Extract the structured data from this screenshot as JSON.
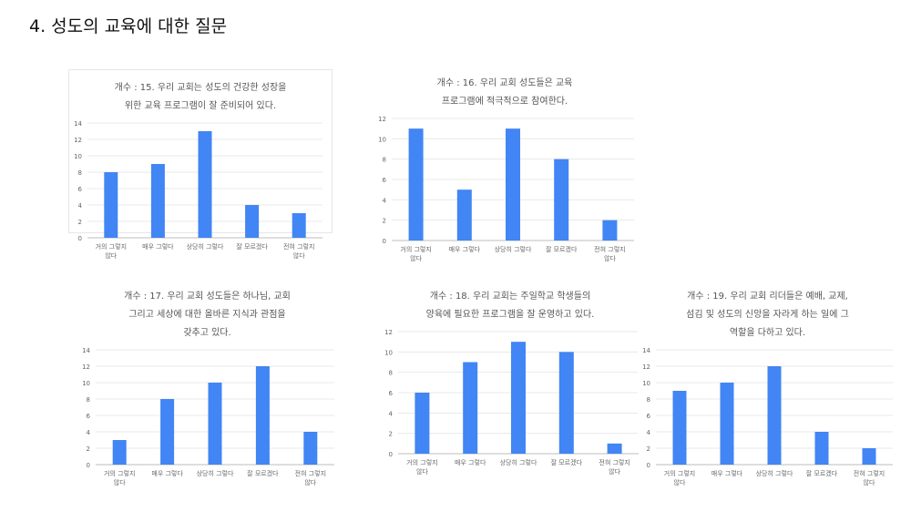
{
  "page": {
    "title": "4. 성도의 교육에 대한 질문"
  },
  "colors": {
    "bar": "#4285F4",
    "grid": "#e8e8e8",
    "text": "#666666"
  },
  "chart_data": [
    {
      "type": "bar",
      "title_lines": [
        "개수 : 15. 우리 교회는 성도의 건강한 성장을",
        "위한 교육 프로그램이 잘 준비되어 있다."
      ],
      "categories": [
        [
          "거의 그렇지",
          "않다"
        ],
        [
          "매우 그렇다"
        ],
        [
          "상당히 그렇다"
        ],
        [
          "잘 모르겠다"
        ],
        [
          "전혀 그렇지",
          "않다"
        ]
      ],
      "values": [
        8,
        9,
        13,
        4,
        3
      ],
      "ylim": [
        0,
        14
      ],
      "yticks": [
        "0",
        "2",
        "4",
        "6",
        "8",
        "10",
        "12",
        "14"
      ],
      "grid": true
    },
    {
      "type": "bar",
      "title_lines": [
        "개수 : 16. 우리 교회 성도들은 교육",
        "프로그램에 적극적으로 참여한다."
      ],
      "categories": [
        [
          "거의 그렇지",
          "않다"
        ],
        [
          "매우 그렇다"
        ],
        [
          "상당히 그렇다"
        ],
        [
          "잘 모르겠다"
        ],
        [
          "전혀 그렇지",
          "않다"
        ]
      ],
      "values": [
        11,
        5,
        11,
        8,
        2
      ],
      "ylim": [
        0,
        12
      ],
      "yticks": [
        "0",
        "2",
        "4",
        "6",
        "8",
        "10",
        "12"
      ],
      "grid": true
    },
    {
      "type": "bar",
      "title_lines": [
        "개수 : 17. 우리 교회 성도들은 하나님, 교회",
        "그리고 세상에 대한 올바른 지식과 관점을",
        "갖추고 있다."
      ],
      "categories": [
        [
          "거의 그렇지",
          "않다"
        ],
        [
          "매우 그렇다"
        ],
        [
          "상당히 그렇다"
        ],
        [
          "잘 모르겠다"
        ],
        [
          "전혀 그렇지",
          "않다"
        ]
      ],
      "values": [
        3,
        8,
        10,
        12,
        4
      ],
      "ylim": [
        0,
        14
      ],
      "yticks": [
        "0",
        "2",
        "4",
        "6",
        "8",
        "10",
        "12",
        "14"
      ],
      "grid": true
    },
    {
      "type": "bar",
      "title_lines": [
        "개수 : 18. 우리 교회는 주일학교 학생들의",
        "양육에 필요한 프로그램을 잘 운영하고 있다."
      ],
      "categories": [
        [
          "거의 그렇지",
          "않다"
        ],
        [
          "매우 그렇다"
        ],
        [
          "상당히 그렇다"
        ],
        [
          "잘 모르겠다"
        ],
        [
          "전혀 그렇지",
          "않다"
        ]
      ],
      "values": [
        6,
        9,
        11,
        10,
        1
      ],
      "ylim": [
        0,
        12
      ],
      "yticks": [
        "0",
        "2",
        "4",
        "6",
        "8",
        "10",
        "12"
      ],
      "grid": true
    },
    {
      "type": "bar",
      "title_lines": [
        "개수 : 19. 우리 교회 리더들은 예배, 교제,",
        "섬김 및 성도의 신앙을 자라게 하는 일에 그",
        "역할을 다하고 있다."
      ],
      "categories": [
        [
          "거의 그렇지",
          "않다"
        ],
        [
          "매우 그렇다"
        ],
        [
          "상당히 그렇다"
        ],
        [
          "잘 모르겠다"
        ],
        [
          "전혀 그렇지",
          "않다"
        ]
      ],
      "values": [
        9,
        10,
        12,
        4,
        2
      ],
      "ylim": [
        0,
        14
      ],
      "yticks": [
        "0",
        "2",
        "4",
        "6",
        "8",
        "10",
        "12",
        "14"
      ],
      "grid": true
    }
  ]
}
